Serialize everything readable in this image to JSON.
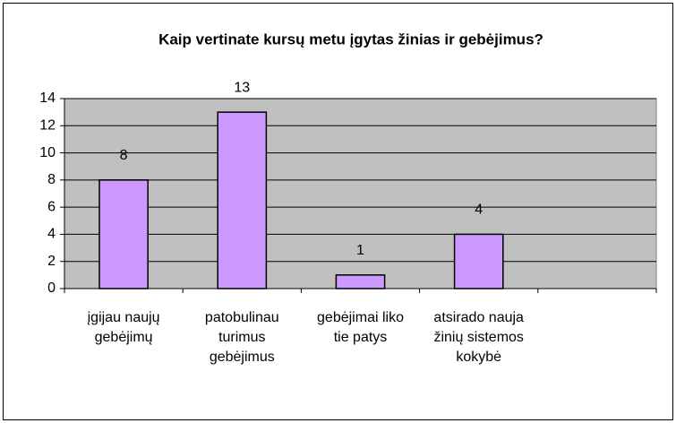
{
  "chart_data": {
    "type": "bar",
    "title": "Kaip vertinate kursų metu įgytas žinias ir gebėjimus?",
    "categories": [
      "įgijau naujų gebėjimų",
      "patobulinau turimus gebėjimus",
      "gebėjimai liko tie patys",
      "atsirado nauja žinių sistemos kokybė",
      null
    ],
    "values": [
      8,
      13,
      1,
      4,
      null
    ],
    "color": "#cc99ff",
    "ylim": [
      0,
      14
    ],
    "yticks": [
      0,
      2,
      4,
      6,
      8,
      10,
      12,
      14
    ],
    "grid": true
  }
}
